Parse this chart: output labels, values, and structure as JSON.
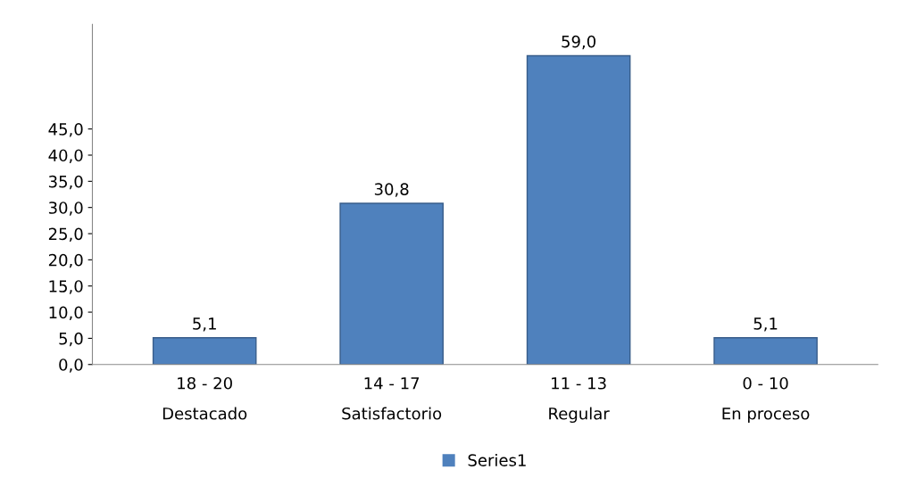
{
  "chart_data": {
    "type": "bar",
    "categories": [
      "18 - 20\nDestacado",
      "14 - 17\nSatisfactorio",
      "11 - 13\nRegular",
      "0 - 10\nEn proceso"
    ],
    "series": [
      {
        "name": "Series1",
        "color": "#4f81bd",
        "values": [
          5.1,
          30.8,
          59.0,
          5.1
        ]
      }
    ],
    "value_labels": [
      "5,1",
      "30,8",
      "59,0",
      "5,1"
    ],
    "ylim": [
      0,
      65
    ],
    "yticks": [
      {
        "value": 0,
        "label": "0,0"
      },
      {
        "value": 5,
        "label": "5,0"
      },
      {
        "value": 10,
        "label": "10,0"
      },
      {
        "value": 15,
        "label": "15,0"
      },
      {
        "value": 20,
        "label": "20,0"
      },
      {
        "value": 25,
        "label": "25,0"
      },
      {
        "value": 30,
        "label": "30,0"
      },
      {
        "value": 35,
        "label": "35,0"
      },
      {
        "value": 40,
        "label": "40,0"
      },
      {
        "value": 45,
        "label": "45,0"
      }
    ],
    "grid": false,
    "legend": "bottom"
  }
}
